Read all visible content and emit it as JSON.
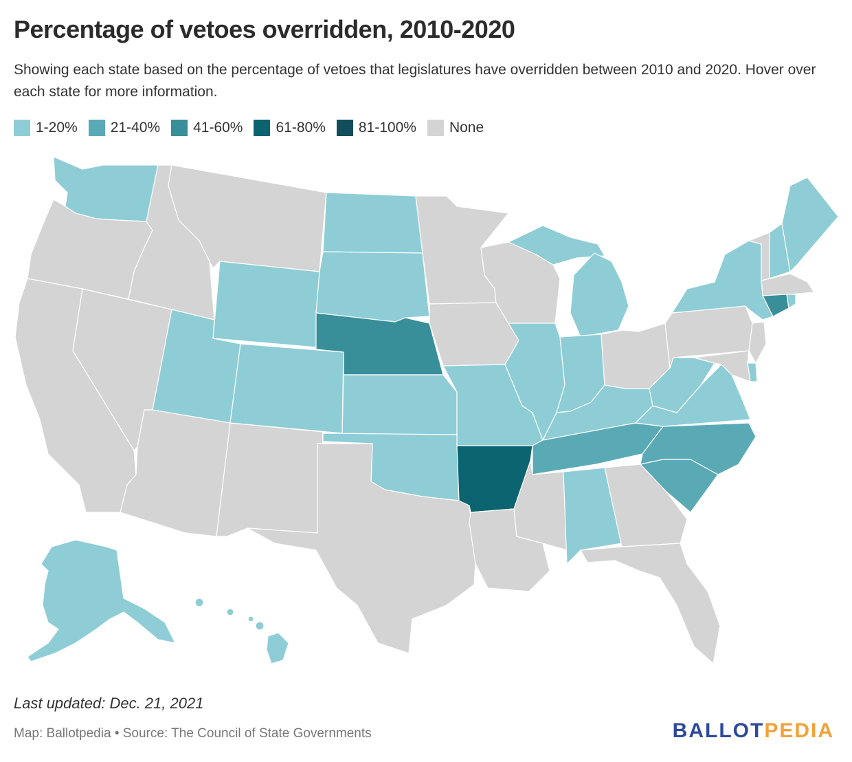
{
  "title": "Percentage of vetoes overridden, 2010-2020",
  "subtitle": "Showing each state based on the percentage of vetoes that legislatures have overridden between 2010 and 2020. Hover over each state for more information.",
  "legend": [
    {
      "label": "1-20%",
      "color": "#8ecdd6"
    },
    {
      "label": "21-40%",
      "color": "#5aaab6"
    },
    {
      "label": "41-60%",
      "color": "#388f99"
    },
    {
      "label": "61-80%",
      "color": "#0c6470"
    },
    {
      "label": "81-100%",
      "color": "#114d5a"
    },
    {
      "label": "None",
      "color": "#d4d4d4"
    }
  ],
  "categories": {
    "1-20%": [
      "Washington",
      "North Dakota",
      "South Dakota",
      "Wyoming",
      "Utah",
      "Colorado",
      "Kansas",
      "Oklahoma",
      "Missouri",
      "Illinois",
      "Indiana",
      "Kentucky",
      "West Virginia",
      "Virginia",
      "Michigan",
      "New York",
      "New Hampshire",
      "Maine",
      "Rhode Island",
      "Alabama",
      "Alaska",
      "Hawaii",
      "Delaware"
    ],
    "21-40%": [
      "Tennessee",
      "North Carolina",
      "South Carolina"
    ],
    "41-60%": [
      "Nebraska",
      "Connecticut"
    ],
    "61-80%": [
      "Arkansas"
    ],
    "81-100%": [],
    "None": [
      "Oregon",
      "California",
      "Nevada",
      "Idaho",
      "Montana",
      "Arizona",
      "New Mexico",
      "Texas",
      "Minnesota",
      "Iowa",
      "Wisconsin",
      "Louisiana",
      "Mississippi",
      "Georgia",
      "Florida",
      "Ohio",
      "Pennsylvania",
      "New Jersey",
      "Maryland",
      "Vermont",
      "Massachusetts"
    ]
  },
  "footer": {
    "updated": "Last updated: Dec. 21, 2021",
    "source": "Map: Ballotpedia • Source: The Council of State Governments",
    "brand_left": "BALLOT",
    "brand_right": "PEDIA"
  }
}
